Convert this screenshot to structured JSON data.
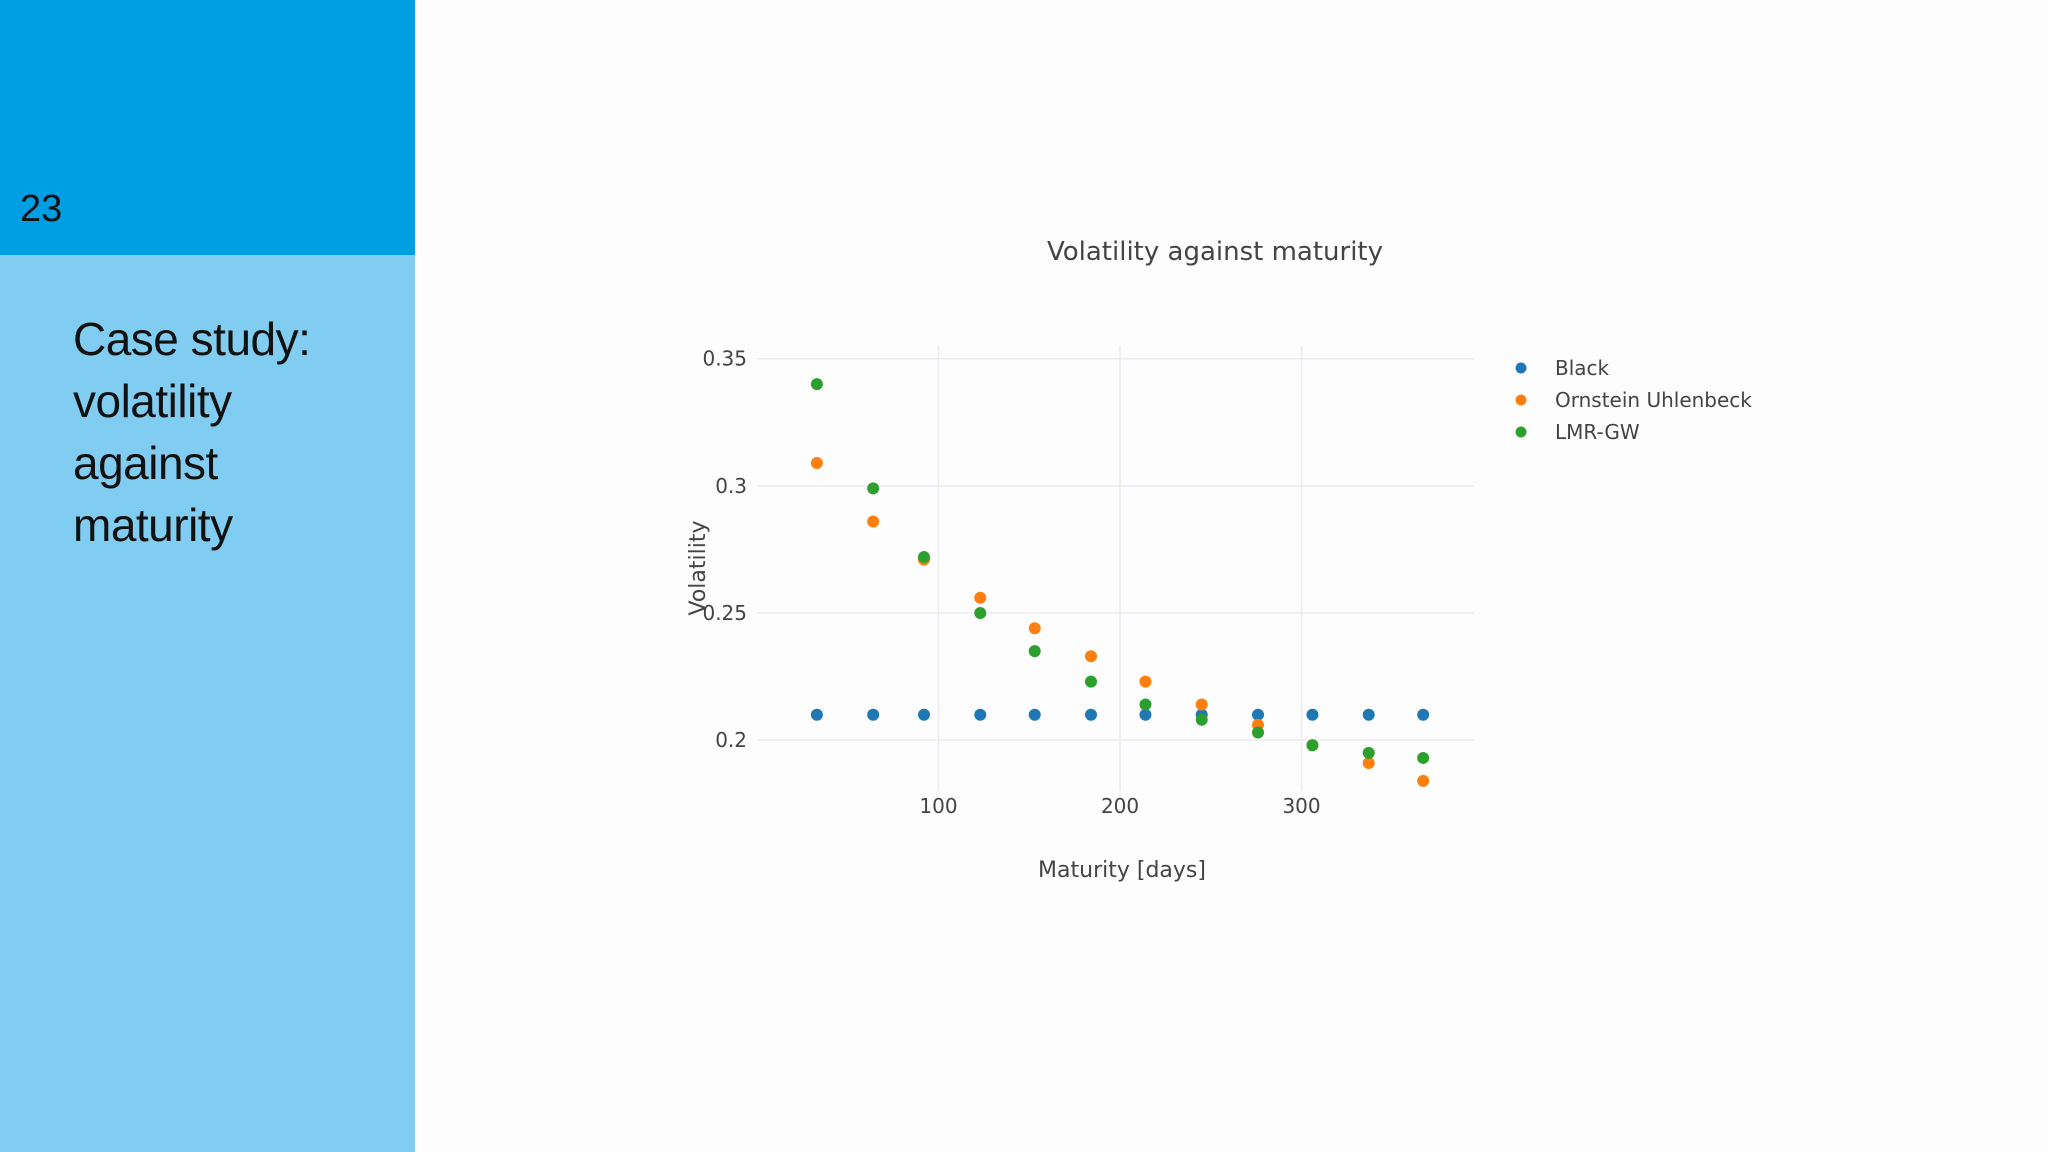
{
  "slide": {
    "number": "23",
    "title_lines": [
      "Case study:",
      "volatility",
      "against",
      "maturity"
    ],
    "colors": {
      "sidebar_top": "#009ee3",
      "sidebar_bottom": "#80cdf1"
    }
  },
  "chart_data": {
    "type": "scatter",
    "title": "Volatility against maturity",
    "xlabel": "Maturity [days]",
    "ylabel": "Volatility",
    "xlim": [
      0,
      395
    ],
    "ylim": [
      0.18,
      0.355
    ],
    "xticks": [
      100,
      200,
      300
    ],
    "yticks": [
      0.2,
      0.25,
      0.3,
      0.35
    ],
    "ytick_labels": [
      "0.2",
      "0.25",
      "0.3",
      "0.35"
    ],
    "grid": true,
    "legend_position": "top-right, outside plot",
    "x": [
      33,
      64,
      92,
      123,
      153,
      184,
      214,
      245,
      276,
      306,
      337,
      367
    ],
    "series": [
      {
        "name": "Black",
        "color": "#1f77b4",
        "values": [
          0.21,
          0.21,
          0.21,
          0.21,
          0.21,
          0.21,
          0.21,
          0.21,
          0.21,
          0.21,
          0.21,
          0.21
        ]
      },
      {
        "name": "Ornstein Uhlenbeck",
        "color": "#ff7f0e",
        "values": [
          0.309,
          0.286,
          0.271,
          0.256,
          0.244,
          0.233,
          0.223,
          0.214,
          0.206,
          0.198,
          0.191,
          0.184
        ]
      },
      {
        "name": "LMR-GW",
        "color": "#2ca02c",
        "values": [
          0.34,
          0.299,
          0.272,
          0.25,
          0.235,
          0.223,
          0.214,
          0.208,
          0.203,
          0.198,
          0.195,
          0.193
        ]
      }
    ]
  }
}
